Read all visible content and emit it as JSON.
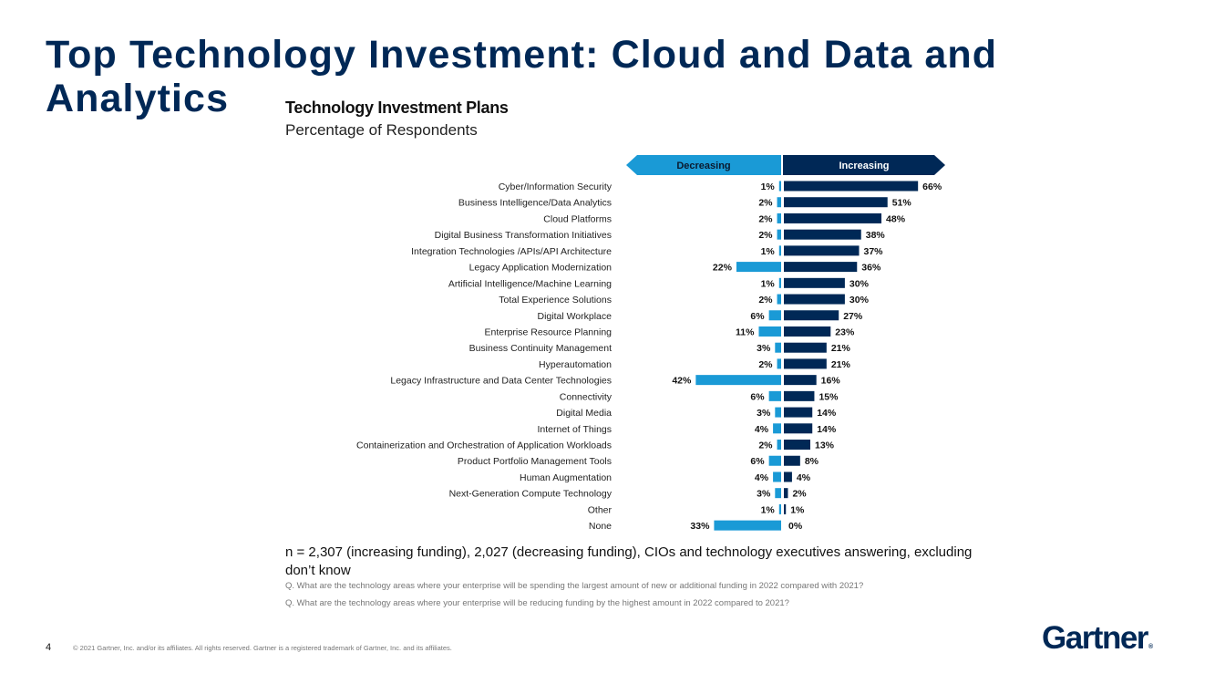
{
  "slide": {
    "title_line1": "Top Technology Investment: Cloud and Data and",
    "title_line2": "Analytics",
    "page_number": "4",
    "copyright": "© 2021 Gartner, Inc. and/or its affiliates. All rights reserved. Gartner is a registered trademark of Gartner, Inc. and its affiliates.",
    "logo_text": "Gartner",
    "logo_mark": "®",
    "note": "n = 2,307 (increasing funding), 2,027 (decreasing funding), CIOs and technology executives answering, excluding don’t know",
    "question1": "Q. What are the technology areas where your enterprise will be spending the largest amount of new or additional funding in 2022 compared with 2021?",
    "question2": "Q. What are the technology areas where your enterprise will be reducing funding by the highest amount in 2022 compared to 2021?"
  },
  "colors": {
    "increasing": "#002856",
    "decreasing": "#1a9ad6",
    "title": "#002856"
  },
  "chart_data": {
    "type": "bar",
    "orientation": "horizontal-diverging",
    "title": "Technology Investment Plans",
    "subtitle": "Percentage of Respondents",
    "unit": "%",
    "legend": [
      "Decreasing",
      "Increasing"
    ],
    "legend_placement": "top",
    "categories": [
      "Cyber/Information Security",
      "Business Intelligence/Data Analytics",
      "Cloud Platforms",
      "Digital Business Transformation Initiatives",
      "Integration Technologies /APIs/API Architecture",
      "Legacy Application Modernization",
      "Artificial Intelligence/Machine Learning",
      "Total Experience Solutions",
      "Digital Workplace",
      "Enterprise Resource Planning",
      "Business Continuity Management",
      "Hyperautomation",
      "Legacy Infrastructure and Data Center Technologies",
      "Connectivity",
      "Digital Media",
      "Internet of Things",
      "Containerization and Orchestration of Application Workloads",
      "Product Portfolio Management Tools",
      "Human Augmentation",
      "Next-Generation Compute Technology",
      "Other",
      "None"
    ],
    "series": [
      {
        "name": "Decreasing",
        "values": [
          1,
          2,
          2,
          2,
          1,
          22,
          1,
          2,
          6,
          11,
          3,
          2,
          42,
          6,
          3,
          4,
          2,
          6,
          4,
          3,
          1,
          33
        ]
      },
      {
        "name": "Increasing",
        "values": [
          66,
          51,
          48,
          38,
          37,
          36,
          30,
          30,
          27,
          23,
          21,
          21,
          16,
          15,
          14,
          14,
          13,
          8,
          4,
          2,
          1,
          0
        ]
      }
    ],
    "xlim": [
      -42,
      66
    ],
    "grid": false
  }
}
